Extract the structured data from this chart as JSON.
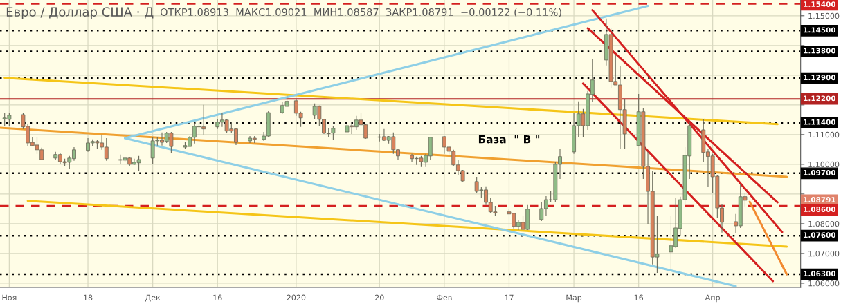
{
  "chart_data": {
    "type": "candlestick",
    "title": "Евро / Доллар США · Д",
    "subtitle": "ОТКР1.08913  МАКС1.09021  МИН1.08587  ЗАКР1.08791  −0.00122 (−0.11%)",
    "x": [
      "2019-10-31",
      "2019-11-01",
      "2019-11-04",
      "2019-11-05",
      "2019-11-06",
      "2019-11-07",
      "2019-11-08",
      "2019-11-11",
      "2019-11-12",
      "2019-11-13",
      "2019-11-14",
      "2019-11-15",
      "2019-11-18",
      "2019-11-19",
      "2019-11-20",
      "2019-11-21",
      "2019-11-22",
      "2019-11-25",
      "2019-11-26",
      "2019-11-27",
      "2019-11-28",
      "2019-11-29",
      "2019-12-02",
      "2019-12-03",
      "2019-12-04",
      "2019-12-05",
      "2019-12-06",
      "2019-12-09",
      "2019-12-10",
      "2019-12-11",
      "2019-12-12",
      "2019-12-13",
      "2019-12-16",
      "2019-12-17",
      "2019-12-18",
      "2019-12-19",
      "2019-12-20",
      "2019-12-23",
      "2019-12-24",
      "2019-12-26",
      "2019-12-27",
      "2019-12-30",
      "2019-12-31",
      "2020-01-02",
      "2020-01-03",
      "2020-01-06",
      "2020-01-07",
      "2020-01-08",
      "2020-01-09",
      "2020-01-10",
      "2020-01-13",
      "2020-01-14",
      "2020-01-15",
      "2020-01-16",
      "2020-01-17",
      "2020-01-20",
      "2020-01-21",
      "2020-01-22",
      "2020-01-23",
      "2020-01-24",
      "2020-01-27",
      "2020-01-28",
      "2020-01-29",
      "2020-01-30",
      "2020-01-31",
      "2020-02-03",
      "2020-02-04",
      "2020-02-05",
      "2020-02-06",
      "2020-02-07",
      "2020-02-10",
      "2020-02-11",
      "2020-02-12",
      "2020-02-13",
      "2020-02-14",
      "2020-02-17",
      "2020-02-18",
      "2020-02-19",
      "2020-02-20",
      "2020-02-21",
      "2020-02-24",
      "2020-02-25",
      "2020-02-26",
      "2020-02-27",
      "2020-02-28",
      "2020-03-02",
      "2020-03-03",
      "2020-03-04",
      "2020-03-05",
      "2020-03-06",
      "2020-03-09",
      "2020-03-10",
      "2020-03-11",
      "2020-03-12",
      "2020-03-13",
      "2020-03-16",
      "2020-03-17",
      "2020-03-18",
      "2020-03-19",
      "2020-03-20",
      "2020-03-23",
      "2020-03-24",
      "2020-03-25",
      "2020-03-26",
      "2020-03-27",
      "2020-03-30",
      "2020-03-31",
      "2020-04-01",
      "2020-04-02",
      "2020-04-03",
      "2020-04-06",
      "2020-04-07",
      "2020-04-08"
    ],
    "ohlc": [
      [
        1.1153,
        1.1174,
        1.113,
        1.1156
      ],
      [
        1.1151,
        1.1174,
        1.1128,
        1.1165
      ],
      [
        1.1167,
        1.1174,
        1.1119,
        1.1126
      ],
      [
        1.1128,
        1.1135,
        1.106,
        1.1072
      ],
      [
        1.1074,
        1.1093,
        1.106,
        1.1063
      ],
      [
        1.1065,
        1.1091,
        1.1035,
        1.1049
      ],
      [
        1.1049,
        1.1056,
        1.1014,
        1.1016
      ],
      [
        1.1021,
        1.1042,
        1.1014,
        1.1033
      ],
      [
        1.1033,
        1.1037,
        1.1002,
        1.1009
      ],
      [
        1.1009,
        1.1019,
        1.0995,
        1.1005
      ],
      [
        1.1007,
        1.1028,
        1.0986,
        1.1021
      ],
      [
        1.1019,
        1.1058,
        1.1012,
        1.1049
      ],
      [
        1.1047,
        1.1088,
        1.1042,
        1.1072
      ],
      [
        1.1072,
        1.1084,
        1.106,
        1.1077
      ],
      [
        1.1077,
        1.1081,
        1.1053,
        1.1072
      ],
      [
        1.1072,
        1.11,
        1.1049,
        1.1058
      ],
      [
        1.1058,
        1.1088,
        1.1012,
        1.1019
      ],
      [
        1.1016,
        1.1033,
        1.1002,
        1.1014
      ],
      [
        1.1014,
        1.1026,
        1.1007,
        1.1021
      ],
      [
        1.1021,
        1.1023,
        1.0993,
        1.1
      ],
      [
        1.1,
        1.1019,
        1.0998,
        1.1007
      ],
      [
        1.1005,
        1.1028,
        1.0979,
        1.1016
      ],
      [
        1.1021,
        1.1091,
        1.1,
        1.1079
      ],
      [
        1.1079,
        1.1093,
        1.1063,
        1.1081
      ],
      [
        1.1081,
        1.1107,
        1.1063,
        1.1074
      ],
      [
        1.1077,
        1.1109,
        1.1072,
        1.1105
      ],
      [
        1.1105,
        1.1109,
        1.1037,
        1.106
      ],
      [
        1.1058,
        1.1074,
        1.1051,
        1.1063
      ],
      [
        1.106,
        1.1095,
        1.106,
        1.1091
      ],
      [
        1.1091,
        1.114,
        1.107,
        1.1128
      ],
      [
        1.1126,
        1.114,
        1.11,
        1.1128
      ],
      [
        1.1126,
        1.12,
        1.11,
        1.1119
      ],
      [
        1.1126,
        1.1151,
        1.1119,
        1.1142
      ],
      [
        1.1142,
        1.1174,
        1.1126,
        1.1149
      ],
      [
        1.1149,
        1.1151,
        1.1105,
        1.1112
      ],
      [
        1.1119,
        1.1142,
        1.1105,
        1.1112
      ],
      [
        1.1119,
        1.1123,
        1.1065,
        1.1074
      ],
      [
        1.1079,
        1.1095,
        1.1072,
        1.1088
      ],
      [
        1.1088,
        1.1095,
        1.1072,
        1.1084
      ],
      [
        1.1084,
        1.1109,
        1.1079,
        1.1095
      ],
      [
        1.1095,
        1.1181,
        1.1093,
        1.1174
      ],
      [
        1.1174,
        1.1209,
        1.117,
        1.1198
      ],
      [
        1.1195,
        1.1235,
        1.1193,
        1.1212
      ],
      [
        1.1214,
        1.1221,
        1.1163,
        1.1172
      ],
      [
        1.1172,
        1.1177,
        1.1126,
        1.1156
      ],
      [
        1.1165,
        1.1205,
        1.1153,
        1.1195
      ],
      [
        1.1195,
        1.1198,
        1.113,
        1.1151
      ],
      [
        1.1151,
        1.1151,
        1.1102,
        1.1105
      ],
      [
        1.1104,
        1.1121,
        1.1091,
        1.1103
      ],
      [
        1.1105,
        1.1128,
        1.1081,
        1.1121
      ],
      [
        1.1109,
        1.1135,
        1.1109,
        1.113
      ],
      [
        1.113,
        1.1142,
        1.1102,
        1.1126
      ],
      [
        1.1126,
        1.1163,
        1.1116,
        1.1149
      ],
      [
        1.1149,
        1.1172,
        1.113,
        1.1133
      ],
      [
        1.1133,
        1.1135,
        1.1086,
        1.1088
      ],
      [
        1.1092,
        1.1102,
        1.1077,
        1.1091
      ],
      [
        1.1093,
        1.1119,
        1.1079,
        1.1081
      ],
      [
        1.1081,
        1.1095,
        1.107,
        1.1093
      ],
      [
        1.1093,
        1.1107,
        1.1035,
        1.1049
      ],
      [
        1.1049,
        1.1053,
        1.1016,
        1.1028
      ],
      [
        1.103,
        1.1035,
        1.1009,
        1.1019
      ],
      [
        1.102,
        1.1026,
        1.0998,
        1.1019
      ],
      [
        1.1021,
        1.1028,
        1.0991,
        1.1009
      ],
      [
        1.1007,
        1.1035,
        1.0991,
        1.103
      ],
      [
        1.1028,
        1.1091,
        1.1014,
        1.1091
      ],
      [
        1.1093,
        1.1095,
        1.1035,
        1.1058
      ],
      [
        1.1058,
        1.1063,
        1.1033,
        1.1044
      ],
      [
        1.1044,
        1.1049,
        1.0993,
        1.0998
      ],
      [
        1.0998,
        1.1014,
        1.0965,
        1.0979
      ],
      [
        1.0979,
        1.0981,
        1.0942,
        1.0944
      ],
      [
        1.0942,
        1.0958,
        1.0902,
        1.0909
      ],
      [
        1.0912,
        1.0923,
        1.0888,
        1.0914
      ],
      [
        1.0914,
        1.0926,
        1.0863,
        1.0872
      ],
      [
        1.0872,
        1.0888,
        1.0837,
        1.084
      ],
      [
        1.084,
        1.086,
        1.0826,
        1.0837
      ],
      [
        1.084,
        1.0851,
        1.0833,
        1.0833
      ],
      [
        1.0835,
        1.0837,
        1.0784,
        1.0791
      ],
      [
        1.0791,
        1.0814,
        1.0779,
        1.0805
      ],
      [
        1.0805,
        1.0826,
        1.0779,
        1.0781
      ],
      [
        1.0781,
        1.0863,
        1.0779,
        1.0849
      ],
      [
        1.0814,
        1.0872,
        1.0809,
        1.0851
      ],
      [
        1.0851,
        1.0893,
        1.0828,
        1.0881
      ],
      [
        1.088,
        1.0909,
        1.0874,
        1.0881
      ],
      [
        1.0881,
        1.1007,
        1.0874,
        1.1
      ],
      [
        1.1,
        1.1053,
        1.0951,
        1.1026
      ],
      [
        1.1042,
        1.1174,
        1.1035,
        1.113
      ],
      [
        1.113,
        1.1212,
        1.1093,
        1.117
      ],
      [
        1.117,
        1.1186,
        1.1093,
        1.113
      ],
      [
        1.113,
        1.1247,
        1.1116,
        1.1237
      ],
      [
        1.1235,
        1.1353,
        1.1209,
        1.1284
      ],
      [
        1.1351,
        1.1491,
        1.1333,
        1.1437
      ],
      [
        1.1437,
        1.1458,
        1.1256,
        1.1279
      ],
      [
        1.1279,
        1.1367,
        1.1267,
        1.1267
      ],
      [
        1.1267,
        1.133,
        1.1053,
        1.1184
      ],
      [
        1.1184,
        1.1219,
        1.1051,
        1.1102
      ],
      [
        1.1063,
        1.1237,
        1.1063,
        1.1177
      ],
      [
        1.1177,
        1.1188,
        1.0951,
        1.0993
      ],
      [
        1.0993,
        1.1042,
        1.08,
        1.0909
      ],
      [
        1.0909,
        1.0979,
        1.0663,
        1.0688
      ],
      [
        1.0688,
        1.0828,
        1.0635,
        1.0698
      ],
      [
        1.0705,
        1.0828,
        1.0647,
        1.0726
      ],
      [
        1.0723,
        1.0888,
        1.0719,
        1.0786
      ],
      [
        1.0784,
        1.0891,
        1.0758,
        1.0881
      ],
      [
        1.0881,
        1.1058,
        1.0867,
        1.103
      ],
      [
        1.1028,
        1.1142,
        1.0951,
        1.113
      ],
      [
        1.1116,
        1.1151,
        1.1007,
        1.104
      ],
      [
        1.1042,
        1.1053,
        1.0923,
        1.1026
      ],
      [
        1.1028,
        1.1035,
        1.0902,
        1.0958
      ],
      [
        1.096,
        1.0965,
        1.0821,
        1.0853
      ],
      [
        1.0853,
        1.0865,
        1.077,
        1.0805
      ],
      [
        1.0807,
        1.0833,
        1.0767,
        1.0793
      ],
      [
        1.0793,
        1.0933,
        1.0786,
        1.0891
      ],
      [
        1.08913,
        1.09021,
        1.08587,
        1.08791
      ]
    ],
    "colors": [
      "#8fbb86",
      "#8fbb86",
      "#d8825c",
      "#d8825c",
      "#d8825c",
      "#d8825c",
      "#d8825c",
      "#8fbb86",
      "#d8825c",
      "#d8825c",
      "#8fbb86",
      "#8fbb86",
      "#8fbb86",
      "#8fbb86",
      "#d8825c",
      "#d8825c",
      "#d8825c",
      "#d8825c",
      "#8fbb86",
      "#d8825c",
      "#8fbb86",
      "#8fbb86",
      "#8fbb86",
      "#8fbb86",
      "#d8825c",
      "#8fbb86",
      "#d8825c",
      "#8fbb86",
      "#8fbb86",
      "#8fbb86",
      "#8fbb86",
      "#d8825c",
      "#8fbb86",
      "#8fbb86",
      "#d8825c",
      "#d8825c",
      "#d8825c",
      "#8fbb86",
      "#d8825c",
      "#8fbb86",
      "#8fbb86",
      "#8fbb86",
      "#8fbb86",
      "#d8825c",
      "#d8825c",
      "#8fbb86",
      "#d8825c",
      "#d8825c",
      "#d8825c",
      "#8fbb86",
      "#8fbb86",
      "#d8825c",
      "#8fbb86",
      "#d8825c",
      "#d8825c",
      "#d8825c",
      "#d8825c",
      "#8fbb86",
      "#d8825c",
      "#d8825c",
      "#d8825c",
      "#d8825c",
      "#d8825c",
      "#8fbb86",
      "#8fbb86",
      "#d8825c",
      "#d8825c",
      "#d8825c",
      "#d8825c",
      "#d8825c",
      "#d8825c",
      "#8fbb86",
      "#d8825c",
      "#d8825c",
      "#d8825c",
      "#d8825c",
      "#d8825c",
      "#8fbb86",
      "#d8825c",
      "#8fbb86",
      "#8fbb86",
      "#8fbb86",
      "#8fbb86",
      "#8fbb86",
      "#8fbb86",
      "#8fbb86",
      "#8fbb86",
      "#d8825c",
      "#8fbb86",
      "#8fbb86",
      "#8fbb86",
      "#d8825c",
      "#d8825c",
      "#d8825c",
      "#d8825c",
      "#8fbb86",
      "#d8825c",
      "#d8825c",
      "#d8825c",
      "#8fbb86",
      "#8fbb86",
      "#8fbb86",
      "#8fbb86",
      "#8fbb86",
      "#8fbb86",
      "#d8825c",
      "#d8825c",
      "#d8825c",
      "#d8825c",
      "#d8825c",
      "#d8825c",
      "#8fbb86",
      "#d8825c"
    ],
    "series": [
      {
        "type": "line",
        "color": "#f5c518",
        "x": [
          "2019-10-31",
          "2020-04-15"
        ],
        "values": [
          1.1291,
          1.1135
        ]
      },
      {
        "type": "line",
        "color": "#f5c518",
        "x": [
          "2019-11-05",
          "2020-04-17"
        ],
        "values": [
          1.0877,
          1.0723
        ]
      },
      {
        "type": "line",
        "color": "#f0a030",
        "x": [
          "2019-10-30",
          "2020-04-17"
        ],
        "values": [
          1.1123,
          1.0958
        ]
      },
      {
        "type": "line",
        "color": "#8ecfe6",
        "x": [
          "2019-11-26",
          "2020-03-18"
        ],
        "values": [
          1.1088,
          1.1533
        ]
      },
      {
        "type": "line",
        "color": "#8ecfe6",
        "x": [
          "2019-11-26",
          "2020-04-06"
        ],
        "values": [
          1.1088,
          1.059
        ]
      },
      {
        "type": "line",
        "color": "#d42020",
        "x": [
          "2020-03-06",
          "2020-04-16"
        ],
        "values": [
          1.1519,
          1.0772
        ]
      },
      {
        "type": "line",
        "color": "#d42020",
        "x": [
          "2020-03-05",
          "2020-04-15"
        ],
        "values": [
          1.1458,
          1.0872
        ]
      },
      {
        "type": "line",
        "color": "#d42020",
        "x": [
          "2020-03-04",
          "2020-04-14"
        ],
        "values": [
          1.1272,
          1.0607
        ]
      },
      {
        "type": "line",
        "color": "#f28a30",
        "x": [
          "2020-04-09",
          "2020-04-17"
        ],
        "values": [
          1.0874,
          1.063
        ]
      }
    ],
    "ref_lines": [
      {
        "axis": "y",
        "value": 1.154,
        "label": "1.15400",
        "color": "#d42020",
        "line_style": "dashed"
      },
      {
        "axis": "y",
        "value": 1.145,
        "label": "1.14500",
        "color": "#000000",
        "line_style": "dotted"
      },
      {
        "axis": "y",
        "value": 1.138,
        "label": "1.13800",
        "color": "#000000",
        "line_style": "dotted"
      },
      {
        "axis": "y",
        "value": 1.129,
        "label": "1.12900",
        "color": "#000000",
        "line_style": "dotted"
      },
      {
        "axis": "y",
        "value": 1.122,
        "label": "1.12200",
        "color": "#b22222",
        "line_style": "solid"
      },
      {
        "axis": "y",
        "value": 1.114,
        "label": "1.11400",
        "color": "#000000",
        "line_style": "dotted"
      },
      {
        "axis": "y",
        "value": 1.097,
        "label": "1.09700",
        "color": "#000000",
        "line_style": "dotted"
      },
      {
        "axis": "y",
        "value": 1.086,
        "label": "1.08600",
        "color": "#d42020",
        "line_style": "dashed"
      },
      {
        "axis": "y",
        "value": 1.076,
        "label": "1.07600",
        "color": "#000000",
        "line_style": "dotted"
      },
      {
        "axis": "y",
        "value": 1.063,
        "label": "1.06300",
        "color": "#000000",
        "line_style": "dotted"
      }
    ],
    "annotations": [
      "База  \" В \"",
      "1.08791"
    ],
    "xlim": [
      "2019-10-30",
      "2020-04-20"
    ],
    "xticks": [
      {
        "value": "2019-11-01",
        "label": "Ноя"
      },
      {
        "value": "2019-11-18",
        "label": "18"
      },
      {
        "value": "2019-12-02",
        "label": "Дек"
      },
      {
        "value": "2019-12-16",
        "label": "16"
      },
      {
        "value": "2020-01-02",
        "label": "2020"
      },
      {
        "value": "2020-01-20",
        "label": "20"
      },
      {
        "value": "2020-02-03",
        "label": "Фев"
      },
      {
        "value": "2020-02-17",
        "label": "17"
      },
      {
        "value": "2020-03-02",
        "label": "Мар"
      },
      {
        "value": "2020-03-16",
        "label": "16"
      },
      {
        "value": "2020-04-01",
        "label": "Апр"
      }
    ],
    "ylim": [
      1.0586,
      1.1553
    ],
    "yticks": [
      {
        "value": 1.06,
        "label": "1.06000"
      },
      {
        "value": 1.07,
        "label": "1.07000"
      },
      {
        "value": 1.08,
        "label": "1.08000"
      },
      {
        "value": 1.09,
        "label": null
      },
      {
        "value": 1.1,
        "label": "1.10000"
      },
      {
        "value": 1.11,
        "label": "1.11000"
      },
      {
        "value": 1.12,
        "label": null
      },
      {
        "value": 1.13,
        "label": null
      },
      {
        "value": 1.14,
        "label": null
      },
      {
        "value": 1.15,
        "label": "1.15000"
      }
    ],
    "grid": true
  }
}
